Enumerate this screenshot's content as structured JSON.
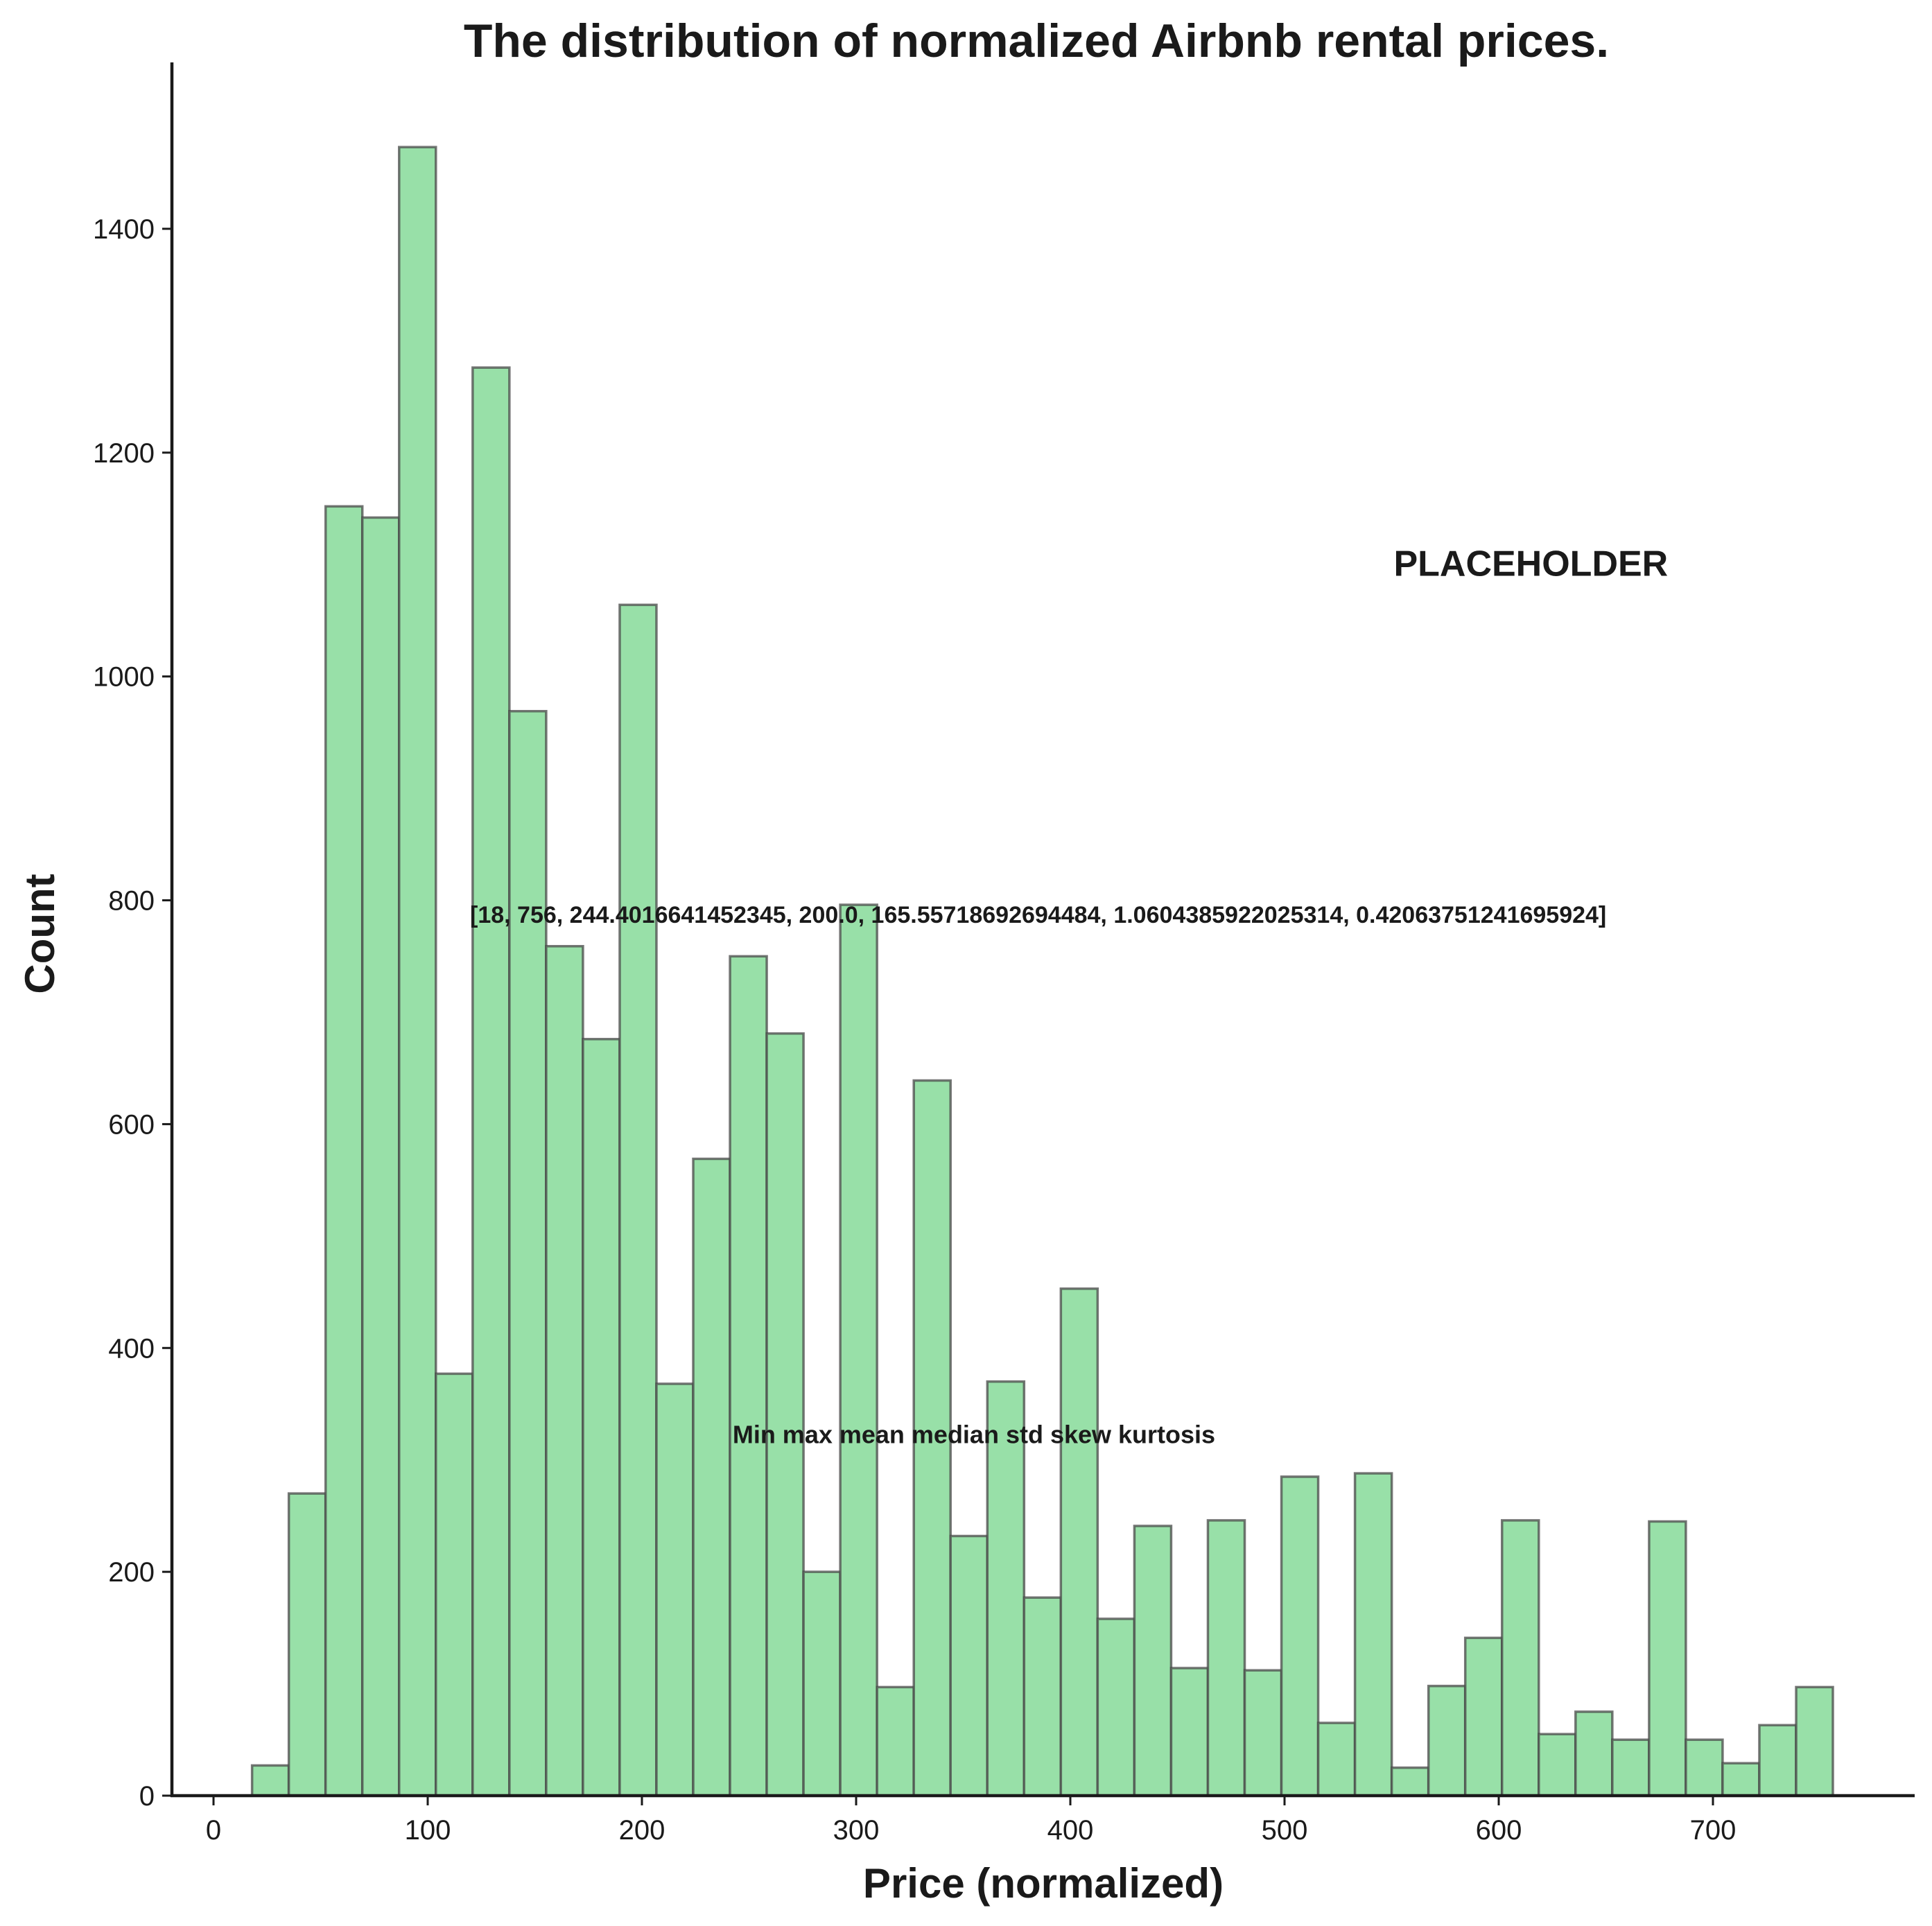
{
  "chart_data": {
    "type": "bar",
    "title": "The distribution of normalized Airbnb rental prices.",
    "xlabel": "Price (normalized)",
    "ylabel": "Count",
    "xlim": [
      -18,
      792
    ],
    "ylim": [
      0,
      1545
    ],
    "x_ticks": [
      0,
      100,
      200,
      300,
      400,
      500,
      600,
      700
    ],
    "y_ticks": [
      0,
      200,
      400,
      600,
      800,
      1000,
      1200,
      1400
    ],
    "bin_edges": [
      18,
      35.16,
      52.33,
      69.49,
      86.65,
      103.81,
      120.98,
      138.14,
      155.3,
      172.47,
      189.63,
      206.79,
      223.95,
      241.12,
      258.28,
      275.44,
      292.6,
      309.77,
      326.93,
      344.09,
      361.26,
      378.42,
      395.58,
      412.74,
      429.91,
      447.07,
      464.23,
      481.4,
      498.56,
      515.72,
      532.88,
      550.05,
      567.21,
      584.37,
      601.53,
      618.7,
      635.86,
      653.02,
      670.19,
      687.35,
      704.51,
      721.67,
      738.84,
      756
    ],
    "values": [
      27,
      270,
      1152,
      1142,
      1473,
      377,
      1276,
      969,
      759,
      676,
      1064,
      368,
      569,
      750,
      681,
      200,
      796,
      97,
      639,
      232,
      370,
      177,
      453,
      158,
      241,
      114,
      246,
      112,
      285,
      65,
      288,
      25,
      98,
      141,
      246,
      55,
      75,
      50,
      245,
      50,
      29,
      63,
      97
    ],
    "bar_color": "#98e0a8",
    "edge_color": "#4a4a4a",
    "grid": false,
    "legend": "none",
    "annotations": [
      {
        "text": "PLACEHOLDER",
        "x": 615,
        "y": 1090
      },
      {
        "text": "[18, 756, 244.4016641452345, 200.0, 165.55718692694484, 1.0604385922025314, 0.42063751241695924]",
        "x": 385,
        "y": 780
      },
      {
        "text": "Min max mean median std skew kurtosis",
        "x": 355,
        "y": 315
      }
    ]
  }
}
